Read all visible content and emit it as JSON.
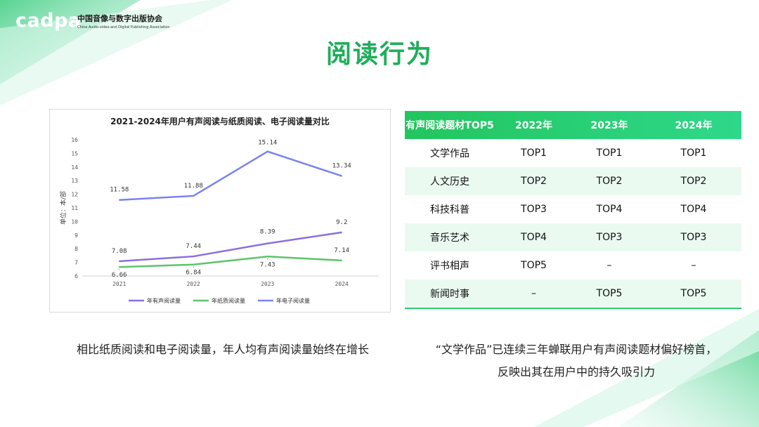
{
  "header": {
    "logo_mark": "cadpa",
    "org_name_cn": "中国音像与数字出版协会",
    "org_name_en": "China Audio-video and Digital Publishing Association",
    "title": "阅读行为"
  },
  "colors": {
    "accent": "#1fae5a",
    "table_header": "#22c55e",
    "row_stripe": "#eafaf1"
  },
  "chart_data": {
    "type": "line",
    "title": "2021-2024年用户有声阅读与纸质阅读、电子阅读量对比",
    "xlabel": "",
    "ylabel": "单位：本/部",
    "categories": [
      "2021",
      "2022",
      "2023",
      "2024"
    ],
    "ylim": [
      6,
      16
    ],
    "yticks": [
      6,
      7,
      8,
      9,
      10,
      11,
      12,
      13,
      14,
      15,
      16
    ],
    "grid": false,
    "legend_position": "bottom",
    "series": [
      {
        "name": "年有声阅读量",
        "color": "#8b6fe0",
        "values": [
          7.08,
          7.44,
          8.39,
          9.2
        ],
        "labels": [
          "7.08",
          "7.44",
          "8.39",
          "9.2"
        ]
      },
      {
        "name": "年纸质阅读量",
        "color": "#5cc46a",
        "values": [
          6.66,
          6.84,
          7.43,
          7.14
        ],
        "labels": [
          "6.66",
          "6.84",
          "7.43",
          "7.14"
        ]
      },
      {
        "name": "年电子阅读量",
        "color": "#7b83ee",
        "values": [
          11.58,
          11.88,
          15.14,
          13.34
        ],
        "labels": [
          "11.58",
          "11.88",
          "15.14",
          "13.34"
        ]
      }
    ]
  },
  "table": {
    "headers": [
      "有声阅读题材TOP5",
      "2022年",
      "2023年",
      "2024年"
    ],
    "rows": [
      [
        "文学作品",
        "TOP1",
        "TOP1",
        "TOP1"
      ],
      [
        "人文历史",
        "TOP2",
        "TOP2",
        "TOP2"
      ],
      [
        "科技科普",
        "TOP3",
        "TOP4",
        "TOP4"
      ],
      [
        "音乐艺术",
        "TOP4",
        "TOP3",
        "TOP3"
      ],
      [
        "评书相声",
        "TOP5",
        "–",
        "–"
      ],
      [
        "新闻时事",
        "–",
        "TOP5",
        "TOP5"
      ]
    ]
  },
  "captions": {
    "left": "相比纸质阅读和电子阅读量，年人均有声阅读量始终在增长",
    "right_line1": "“文学作品”已连续三年蝉联用户有声阅读题材偏好榜首，",
    "right_line2": "反映出其在用户中的持久吸引力"
  }
}
